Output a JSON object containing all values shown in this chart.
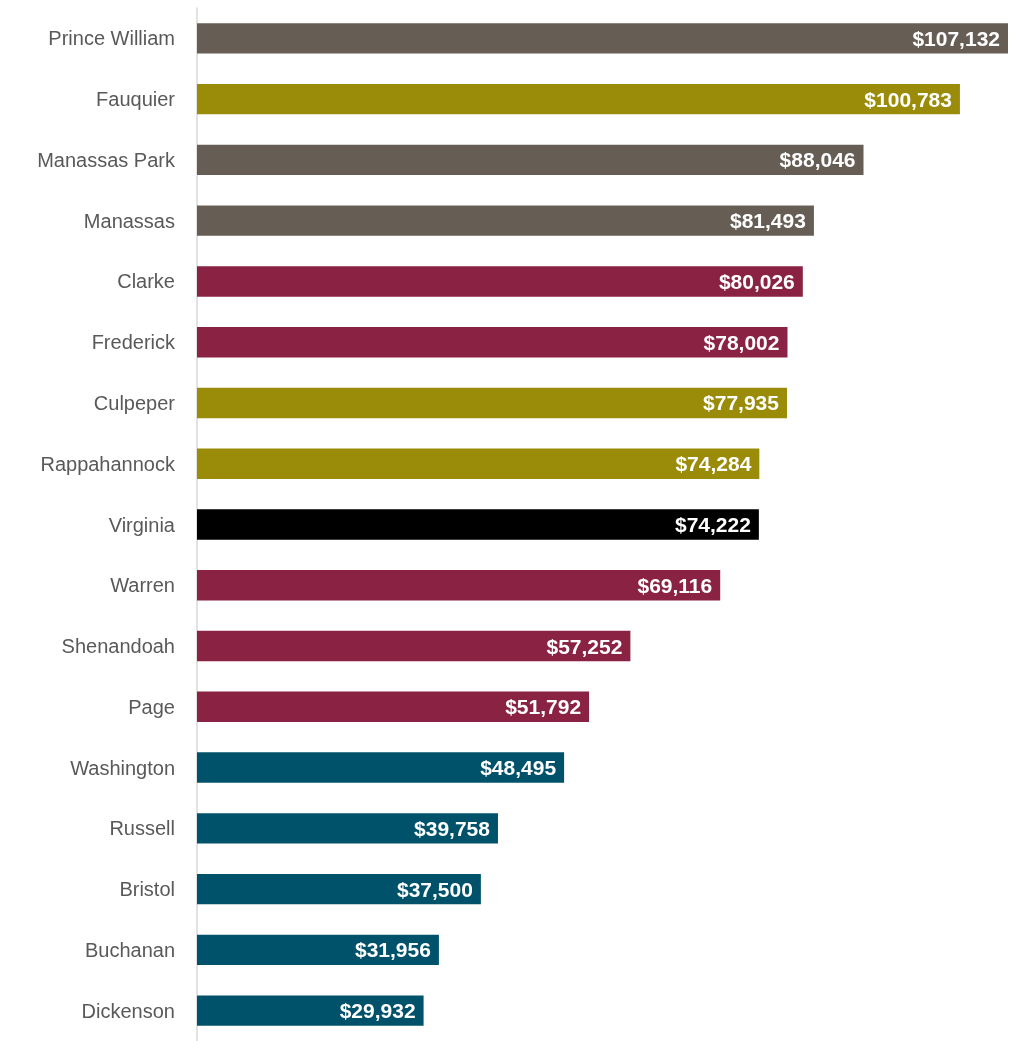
{
  "chart_data": {
    "type": "bar",
    "orientation": "horizontal",
    "categories": [
      "Prince William",
      "Fauquier",
      "Manassas Park",
      "Manassas",
      "Clarke",
      "Frederick",
      "Culpeper",
      "Rappahannock",
      "Virginia",
      "Warren",
      "Shenandoah",
      "Page",
      "Washington",
      "Russell",
      "Bristol",
      "Buchanan",
      "Dickenson"
    ],
    "values": [
      107132,
      100783,
      88046,
      81493,
      80026,
      78002,
      77935,
      74284,
      74222,
      69116,
      57252,
      51792,
      48495,
      39758,
      37500,
      31956,
      29932
    ],
    "value_labels": [
      "$107,132",
      "$100,783",
      "$88,046",
      "$81,493",
      "$80,026",
      "$78,002",
      "$77,935",
      "$74,284",
      "$74,222",
      "$69,116",
      "$57,252",
      "$51,792",
      "$48,495",
      "$39,758",
      "$37,500",
      "$31,956",
      "$29,932"
    ],
    "colors": [
      "#665e55",
      "#9a8c08",
      "#665e55",
      "#665e55",
      "#8a2343",
      "#8a2343",
      "#9a8c08",
      "#9a8c08",
      "#000000",
      "#8a2343",
      "#8a2343",
      "#8a2343",
      "#00526a",
      "#00526a",
      "#00526a",
      "#00526a",
      "#00526a"
    ],
    "xlim": [
      0,
      107132
    ],
    "tick_labels": "y"
  }
}
